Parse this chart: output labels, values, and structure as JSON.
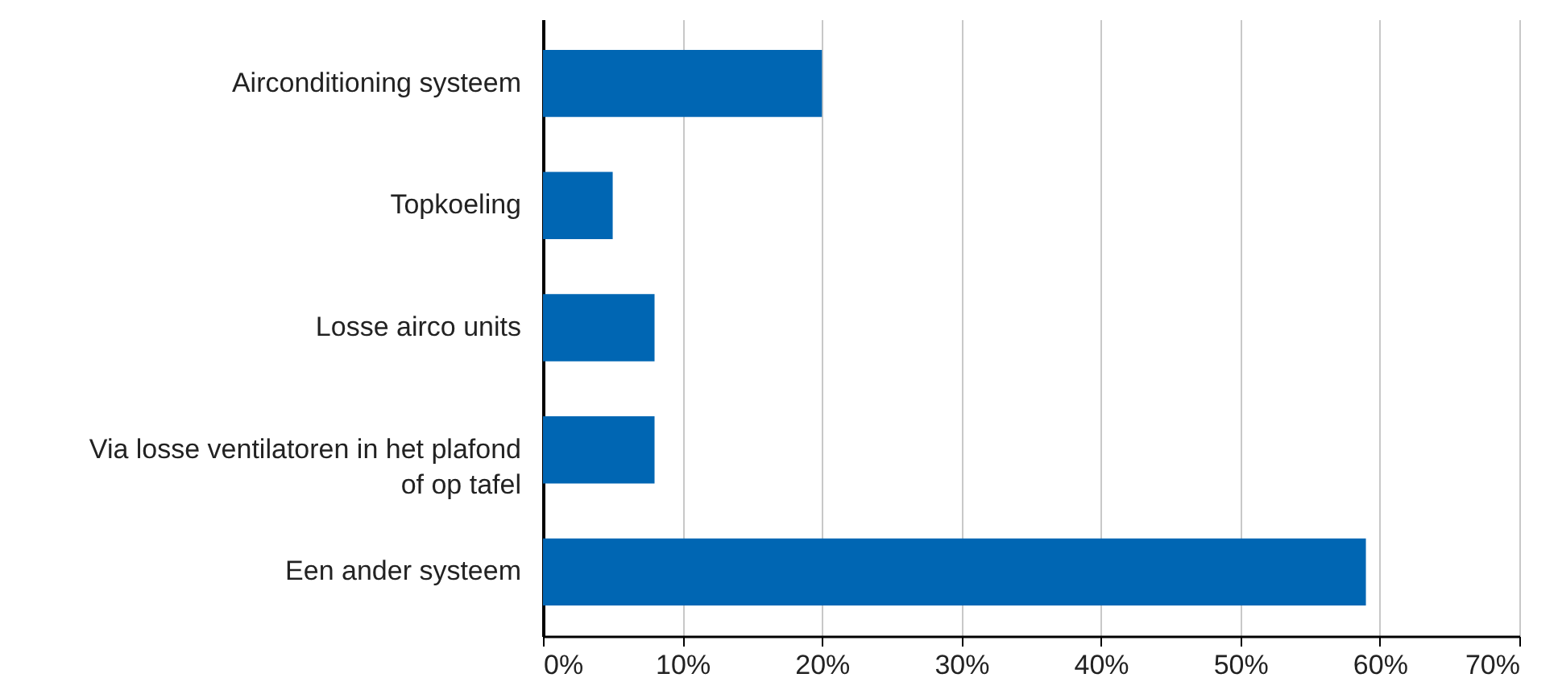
{
  "chart_data": {
    "type": "bar",
    "orientation": "horizontal",
    "categories": [
      "Airconditioning systeem",
      "Topkoeling",
      "Losse airco units",
      "Via losse ventilatoren in het plafond of op tafel",
      "Een ander systeem"
    ],
    "values": [
      20,
      5,
      8,
      8,
      59
    ],
    "color": "#0066b3",
    "xlim": [
      0,
      70
    ],
    "xticks": [
      {
        "value": 0,
        "label": "0%"
      },
      {
        "value": 10,
        "label": "10%"
      },
      {
        "value": 20,
        "label": "20%"
      },
      {
        "value": 30,
        "label": "30%"
      },
      {
        "value": 40,
        "label": "40%"
      },
      {
        "value": 50,
        "label": "50%"
      },
      {
        "value": 60,
        "label": "60%"
      },
      {
        "value": 70,
        "label": "70%"
      }
    ],
    "grid": "x"
  }
}
